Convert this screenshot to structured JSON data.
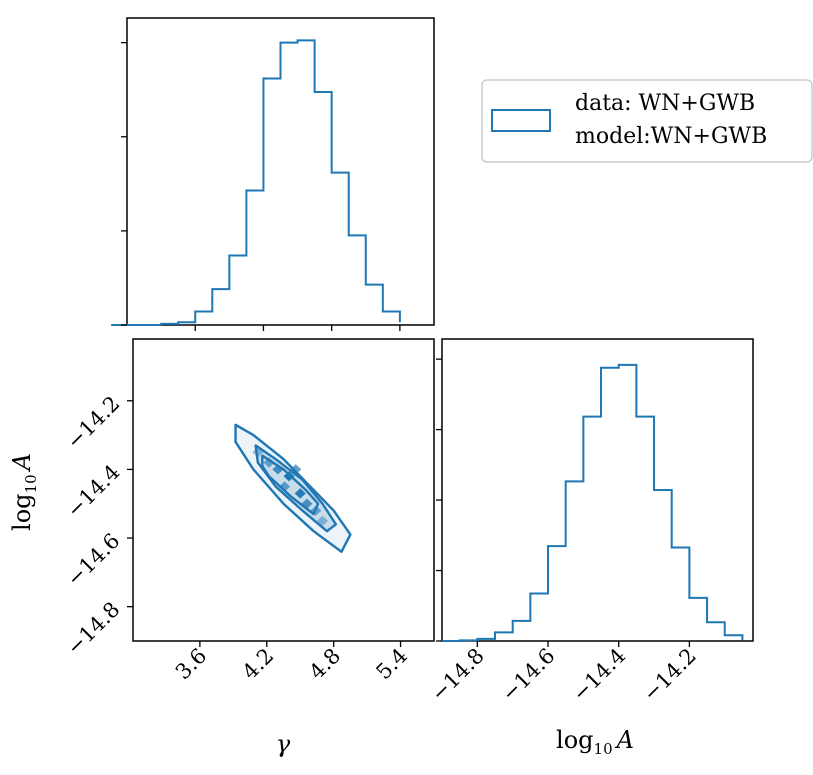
{
  "chart_data": {
    "type": "corner",
    "accent_color": "#1f77b4",
    "legend": {
      "placement": "top-right",
      "lines": [
        "data:  WN+GWB",
        "model:WN+GWB"
      ]
    },
    "parameters": [
      "γ",
      "log₁₀ A"
    ],
    "labels": {
      "gamma": "γ",
      "log10A_base": "log",
      "log10A_sub": "10",
      "log10A_var": "A"
    },
    "hist_gamma": {
      "xlim": [
        3.0,
        5.7
      ],
      "bin_edges": [
        3.3,
        3.45,
        3.6,
        3.75,
        3.9,
        4.05,
        4.2,
        4.35,
        4.5,
        4.65,
        4.8,
        4.95,
        5.1,
        5.25,
        5.4
      ],
      "counts": [
        0.005,
        0.012,
        0.06,
        0.16,
        0.31,
        0.6,
        1.1,
        1.26,
        1.27,
        1.04,
        0.68,
        0.4,
        0.18,
        0.06,
        0.012
      ],
      "ylim": [
        0,
        1.37
      ],
      "yticks": [
        0,
        0.42,
        0.84,
        1.26
      ],
      "xticks": [
        3.6,
        4.2,
        4.8,
        5.4
      ],
      "xtick_labels": [
        "3.6",
        "4.2",
        "4.8",
        "5.4"
      ]
    },
    "hist_log10A": {
      "xlim": [
        -14.9,
        -14.02
      ],
      "bin_edges": [
        -14.85,
        -14.8,
        -14.75,
        -14.7,
        -14.65,
        -14.6,
        -14.55,
        -14.5,
        -14.45,
        -14.4,
        -14.35,
        -14.3,
        -14.25,
        -14.2,
        -14.15,
        -14.1,
        -14.05
      ],
      "counts": [
        0.004,
        0.015,
        0.06,
        0.14,
        0.33,
        0.66,
        1.11,
        1.56,
        1.9,
        1.92,
        1.56,
        1.05,
        0.65,
        0.3,
        0.13,
        0.04,
        0.005
      ],
      "ylim": [
        0,
        2.1
      ],
      "yticks": [
        0,
        0.49,
        0.98,
        1.47,
        1.96
      ],
      "xticks": [
        -14.8,
        -14.6,
        -14.4,
        -14.2
      ],
      "xtick_labels": [
        "−14.8",
        "−14.6",
        "−14.4",
        "−14.2"
      ]
    },
    "joint": {
      "xlim": [
        3.0,
        5.7
      ],
      "ylim": [
        -14.9,
        -14.02
      ],
      "yticks": [
        -14.8,
        -14.6,
        -14.4,
        -14.2
      ],
      "ytick_labels": [
        "−14.8",
        "−14.6",
        "−14.4",
        "−14.2"
      ],
      "center": [
        4.42,
        -14.44
      ],
      "contours": [
        {
          "name": "outer",
          "polygon": [
            [
              3.92,
              -14.27
            ],
            [
              4.08,
              -14.3
            ],
            [
              4.35,
              -14.37
            ],
            [
              4.62,
              -14.46
            ],
            [
              4.8,
              -14.52
            ],
            [
              4.95,
              -14.59
            ],
            [
              4.87,
              -14.64
            ],
            [
              4.62,
              -14.58
            ],
            [
              4.35,
              -14.5
            ],
            [
              4.08,
              -14.4
            ],
            [
              3.92,
              -14.32
            ]
          ]
        },
        {
          "name": "middle",
          "polygon": [
            [
              4.1,
              -14.33
            ],
            [
              4.28,
              -14.37
            ],
            [
              4.52,
              -14.43
            ],
            [
              4.7,
              -14.5
            ],
            [
              4.82,
              -14.56
            ],
            [
              4.74,
              -14.58
            ],
            [
              4.52,
              -14.52
            ],
            [
              4.28,
              -14.45
            ],
            [
              4.12,
              -14.38
            ]
          ]
        },
        {
          "name": "inner",
          "polygon": [
            [
              4.16,
              -14.36
            ],
            [
              4.35,
              -14.4
            ],
            [
              4.55,
              -14.46
            ],
            [
              4.66,
              -14.5
            ],
            [
              4.62,
              -14.53
            ],
            [
              4.42,
              -14.48
            ],
            [
              4.22,
              -14.42
            ],
            [
              4.16,
              -14.39
            ]
          ]
        }
      ],
      "cells": [
        {
          "x": 4.4,
          "y": -14.42,
          "w": 0.1,
          "h": 0.03,
          "v": 1.0
        },
        {
          "x": 4.5,
          "y": -14.47,
          "w": 0.1,
          "h": 0.03,
          "v": 0.95
        },
        {
          "x": 4.3,
          "y": -14.4,
          "w": 0.1,
          "h": 0.03,
          "v": 0.75
        },
        {
          "x": 4.56,
          "y": -14.5,
          "w": 0.1,
          "h": 0.03,
          "v": 0.7
        },
        {
          "x": 4.22,
          "y": -14.38,
          "w": 0.1,
          "h": 0.03,
          "v": 0.5
        },
        {
          "x": 4.64,
          "y": -14.52,
          "w": 0.1,
          "h": 0.03,
          "v": 0.45
        },
        {
          "x": 4.36,
          "y": -14.45,
          "w": 0.1,
          "h": 0.03,
          "v": 0.55
        },
        {
          "x": 4.46,
          "y": -14.4,
          "w": 0.1,
          "h": 0.03,
          "v": 0.6
        },
        {
          "x": 4.7,
          "y": -14.55,
          "w": 0.1,
          "h": 0.03,
          "v": 0.25
        },
        {
          "x": 4.12,
          "y": -14.35,
          "w": 0.1,
          "h": 0.03,
          "v": 0.25
        }
      ]
    }
  }
}
